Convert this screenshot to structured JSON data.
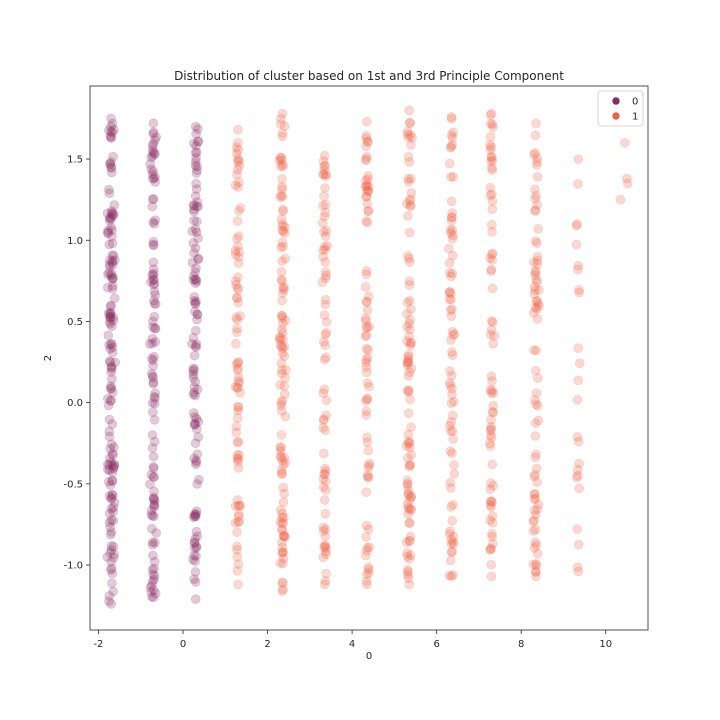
{
  "chart_data": {
    "type": "scatter",
    "title": "Distribution of cluster based on 1st and 3rd Principle Component",
    "xlabel": "0",
    "ylabel": "2",
    "xlim": [
      -2.2,
      11.0
    ],
    "ylim": [
      -1.4,
      1.95
    ],
    "xticks": [
      "-2",
      "0",
      "2",
      "4",
      "6",
      "8",
      "10"
    ],
    "yticks": [
      "-1.0",
      "-0.5",
      "0.0",
      "0.5",
      "1.0",
      "1.5"
    ],
    "grid": false,
    "legend_position": "top-right",
    "series": [
      {
        "name": "0",
        "color": "#8b2a63",
        "columns": [
          {
            "x": -1.7,
            "y_min": -1.24,
            "y_max": 1.75,
            "jitter": 0.12,
            "n": 150
          },
          {
            "x": -0.7,
            "y_min": -1.2,
            "y_max": 1.72,
            "jitter": 0.1,
            "n": 110
          },
          {
            "x": 0.3,
            "y_min": -1.21,
            "y_max": 1.7,
            "jitter": 0.1,
            "n": 110
          }
        ]
      },
      {
        "name": "1",
        "color": "#ef6247",
        "columns": [
          {
            "x": 1.3,
            "y_min": -1.12,
            "y_max": 1.68,
            "jitter": 0.08,
            "n": 80
          },
          {
            "x": 2.35,
            "y_min": -1.16,
            "y_max": 1.78,
            "jitter": 0.1,
            "n": 110
          },
          {
            "x": 3.35,
            "y_min": -1.12,
            "y_max": 1.52,
            "jitter": 0.08,
            "n": 70
          },
          {
            "x": 4.35,
            "y_min": -1.12,
            "y_max": 1.73,
            "jitter": 0.08,
            "n": 75
          },
          {
            "x": 5.35,
            "y_min": -1.12,
            "y_max": 1.8,
            "jitter": 0.1,
            "n": 95
          },
          {
            "x": 6.35,
            "y_min": -1.07,
            "y_max": 1.76,
            "jitter": 0.09,
            "n": 75
          },
          {
            "x": 7.3,
            "y_min": -1.07,
            "y_max": 1.78,
            "jitter": 0.08,
            "n": 70
          },
          {
            "x": 8.35,
            "y_min": -1.07,
            "y_max": 1.72,
            "jitter": 0.09,
            "n": 75
          },
          {
            "x": 9.35,
            "y_min": -1.04,
            "y_max": 1.5,
            "jitter": 0.07,
            "n": 22
          }
        ],
        "points": [
          {
            "x": 10.45,
            "y": 1.6
          },
          {
            "x": 10.5,
            "y": 1.38
          },
          {
            "x": 10.52,
            "y": 1.35
          },
          {
            "x": 10.35,
            "y": 1.25
          }
        ]
      }
    ]
  }
}
